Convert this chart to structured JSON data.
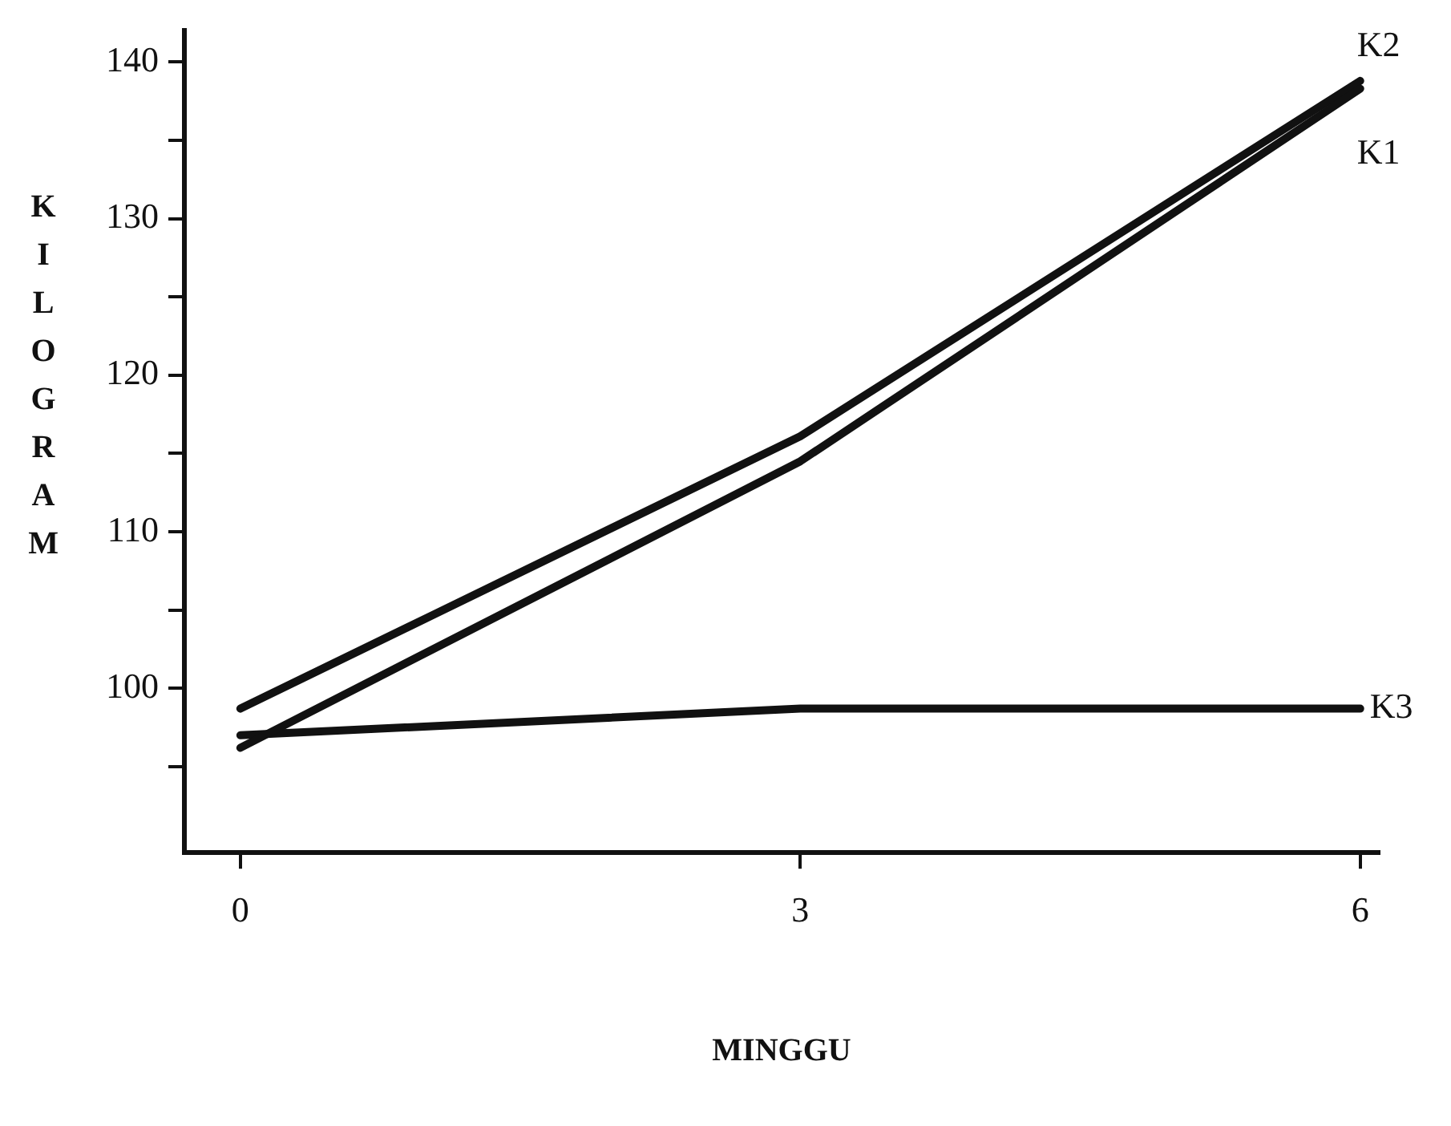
{
  "chart_data": {
    "type": "line",
    "xlabel": "MINGGU",
    "ylabel": "KILOGRAM",
    "x": [
      0,
      3,
      6
    ],
    "series": [
      {
        "name": "K1",
        "color": "#111111",
        "values": [
          96.2,
          114.5,
          138.3
        ]
      },
      {
        "name": "K2",
        "color": "#111111",
        "values": [
          98.7,
          116.1,
          138.8
        ]
      },
      {
        "name": "K3",
        "color": "#111111",
        "values": [
          97,
          98.7,
          98.7
        ]
      }
    ],
    "xlim": [
      -0.3,
      6.1
    ],
    "xticks": [
      0,
      3,
      6
    ],
    "ylim": [
      89.5,
      142
    ],
    "yticks": [
      {
        "value": 95,
        "label": null
      },
      100,
      {
        "value": 105,
        "label": null
      },
      110,
      {
        "value": 115,
        "label": null
      },
      120,
      {
        "value": 125,
        "label": null
      },
      130,
      {
        "value": 135,
        "label": null
      },
      140
    ],
    "grid": false,
    "legend": false,
    "marker": "none",
    "line_style": "solid"
  }
}
